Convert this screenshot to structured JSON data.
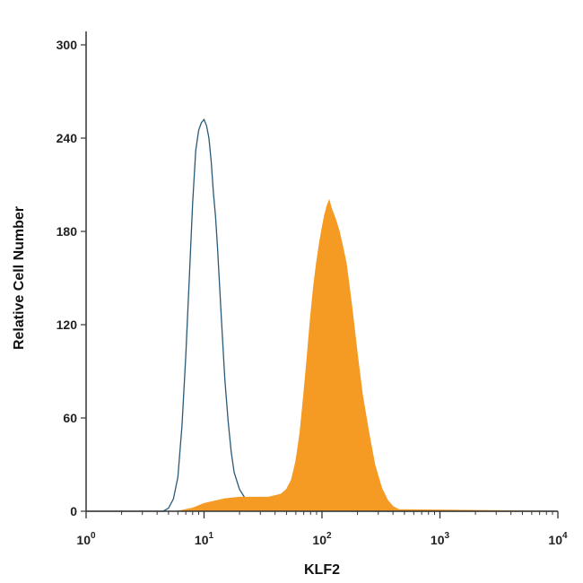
{
  "chart_data": {
    "type": "area",
    "xlabel": "KLF2",
    "ylabel": "Relative Cell Number",
    "x_scale": "log",
    "xlim": [
      1,
      10000
    ],
    "ylim": [
      0,
      300
    ],
    "x_ticks": [
      {
        "value": 1,
        "base": "10",
        "exp": "0"
      },
      {
        "value": 10,
        "base": "10",
        "exp": "1"
      },
      {
        "value": 100,
        "base": "10",
        "exp": "2"
      },
      {
        "value": 1000,
        "base": "10",
        "exp": "3"
      },
      {
        "value": 10000,
        "base": "10",
        "exp": "4"
      }
    ],
    "y_ticks": [
      0,
      60,
      120,
      180,
      240,
      300
    ],
    "grid": false,
    "legend": "none",
    "series": [
      {
        "style": "outline",
        "color": "#2a5a78",
        "x": [
          1,
          4.5,
          5.0,
          5.5,
          6.0,
          6.5,
          7.0,
          7.5,
          8.0,
          8.5,
          9.0,
          9.5,
          10.0,
          10.5,
          11.0,
          11.5,
          12.0,
          12.5,
          13.0,
          14.0,
          15.0,
          16.0,
          17.0,
          18.0,
          20.0,
          22.0,
          25.0,
          30.0,
          35.0,
          40.0,
          50.0,
          70.0,
          100.0,
          10000
        ],
        "y": [
          0,
          0,
          2,
          8,
          22,
          55,
          100,
          150,
          198,
          232,
          245,
          250,
          252,
          248,
          240,
          225,
          205,
          190,
          170,
          125,
          85,
          58,
          38,
          25,
          14,
          9,
          6,
          3,
          2,
          1,
          0.5,
          0,
          0,
          0
        ]
      },
      {
        "style": "filled",
        "color": "#f59a23",
        "x": [
          1,
          6.0,
          8.0,
          10.0,
          15.0,
          20.0,
          25.0,
          30.0,
          35.0,
          40.0,
          45.0,
          50.0,
          55.0,
          60.0,
          65.0,
          70.0,
          75.0,
          80.0,
          85.0,
          90.0,
          95.0,
          100.0,
          105.0,
          110.0,
          115.0,
          120.0,
          130.0,
          140.0,
          150.0,
          160.0,
          170.0,
          180.0,
          200.0,
          220.0,
          250.0,
          280.0,
          320.0,
          360.0,
          400.0,
          450.0,
          10000
        ],
        "y": [
          0,
          0,
          2,
          5,
          8,
          9,
          9,
          9,
          9,
          10,
          11,
          14,
          20,
          32,
          50,
          75,
          100,
          125,
          145,
          160,
          172,
          182,
          190,
          196,
          200,
          195,
          188,
          180,
          170,
          160,
          145,
          130,
          100,
          75,
          50,
          30,
          15,
          7,
          3,
          1,
          0
        ]
      }
    ]
  }
}
